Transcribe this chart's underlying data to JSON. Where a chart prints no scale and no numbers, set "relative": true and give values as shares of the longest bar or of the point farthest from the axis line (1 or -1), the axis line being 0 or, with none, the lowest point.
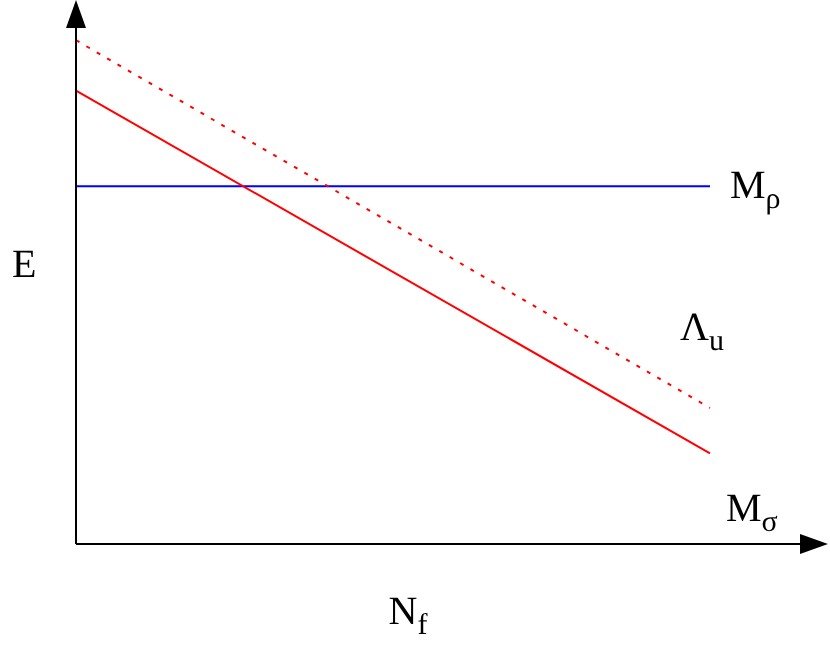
{
  "chart_data": {
    "type": "line",
    "relative": true,
    "xlabel": "N$_{f}$",
    "ylabel": "E",
    "categories": [
      null,
      null
    ],
    "series": [
      {
        "name": "M$_{ρ}$",
        "color": "#0000ff",
        "values": [
          0.71,
          0.71
        ]
      },
      {
        "name": "Λ$_{u}$",
        "color": "#ff0000",
        "line_style": "dotted",
        "values": [
          1,
          0.27
        ]
      },
      {
        "name": "M$_{σ}$",
        "color": "#ff0000",
        "values": [
          0.9,
          0.18
        ]
      }
    ]
  }
}
